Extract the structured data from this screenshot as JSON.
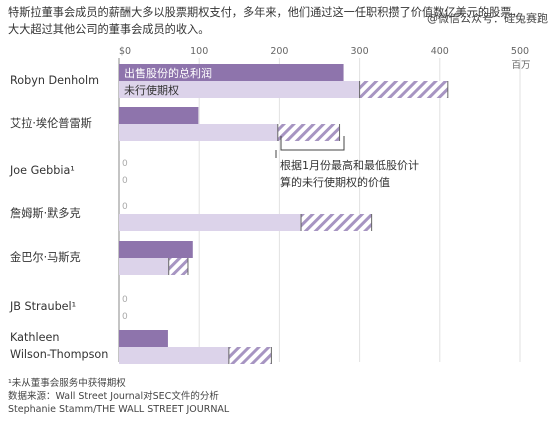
{
  "title_lines": [
    "特斯拉董事会成员的薪酬大多以股票期权支付，多年来，他们通过这一任职积攒了价值数亿美元的股票，",
    "大大超过其他公司的董事会成员的收入。"
  ],
  "watermark": "@微信公众号：硅兔赛跑",
  "legend_labels": [
    "出售股份的总利润",
    "未行使期权"
  ],
  "annotation_lines": [
    "根据1月份最高和最低股价计",
    "算的未行使期权的价值"
  ],
  "footnotes": [
    "¹未从董事会服务中获得期权",
    "数据来源：Wall Street Journal对SEC文件的分析",
    "Stephanie Stamm/THE WALL STREET JOURNAL"
  ],
  "colors": {
    "realized": "#8e74ac",
    "unexercised": "#dcd3ea",
    "hatch": "#a795c2",
    "axis": "#999999",
    "text": "#333333"
  },
  "chart_data": {
    "type": "bar",
    "orientation": "horizontal",
    "unit_label": "百万",
    "xlim": [
      0,
      500
    ],
    "x_ticks": [
      "$0",
      "100",
      "200",
      "300",
      "400",
      "500"
    ],
    "x_tick_values": [
      0,
      100,
      200,
      300,
      400,
      500
    ],
    "grid": true,
    "categories": [
      "Robyn Denholm",
      "艾拉·埃伦普雷斯",
      "Joe Gebbia¹",
      "詹姆斯·默多克",
      "金巴尔·马斯克",
      "JB Straubel¹",
      "Kathleen Wilson-Thompson"
    ],
    "category_display": [
      [
        "Robyn Denholm"
      ],
      [
        "艾拉·埃伦普雷斯"
      ],
      [
        "Joe Gebbia¹"
      ],
      [
        "詹姆斯·默多克"
      ],
      [
        "金巴尔·马斯克"
      ],
      [
        "JB Straubel¹"
      ],
      [
        "Kathleen",
        "Wilson-Thompson"
      ]
    ],
    "series": [
      {
        "name": "出售股份的总利润",
        "values": [
          280,
          99,
          0,
          0,
          92,
          0,
          61
        ]
      },
      {
        "name": "未行使期权",
        "values": [
          300,
          198,
          0,
          227,
          62,
          0,
          137
        ],
        "range_high": [
          410,
          275,
          0,
          315,
          86,
          0,
          190
        ]
      }
    ],
    "zero_labels": [
      "0",
      "0"
    ]
  }
}
